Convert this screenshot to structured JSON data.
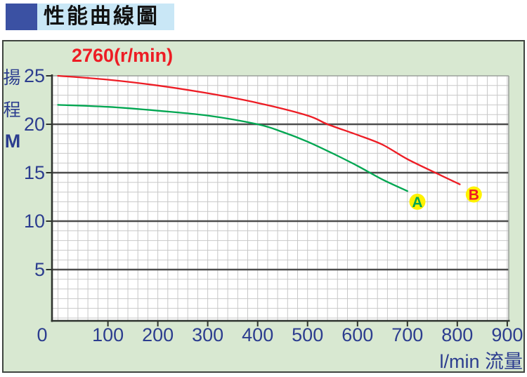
{
  "header": {
    "title": "性能曲線圖"
  },
  "colors": {
    "red": "#ed1c24",
    "green": "#00a651",
    "navy": "#2c3d8f",
    "marker_yellow": "#fff200",
    "panel_bg": "#d8e8d1",
    "title_bar_bg": "#c9e7f6",
    "title_square": "#3b51a3",
    "grid_minor": "#c8c8c8",
    "grid_major": "#4d4d4d",
    "axis_dark": "#2e332e",
    "plot_border_light": "#9aa09a",
    "plot_bg": "#ffffff"
  },
  "chart_data": {
    "type": "line",
    "rpm_label": "2760(r/min)",
    "ylabel_chars": [
      "揚",
      "程"
    ],
    "ylabel_unit": "M",
    "xlabel": "l/min 流量",
    "x_ticks": [
      0,
      100,
      200,
      300,
      400,
      500,
      600,
      700,
      800,
      900
    ],
    "y_ticks": [
      5,
      10,
      15,
      20,
      25
    ],
    "xlim": [
      -12,
      903
    ],
    "ylim": [
      0,
      25
    ],
    "grid": {
      "minor_x_step": 20,
      "minor_y_step": 1,
      "major_y_step": 5,
      "grid_on": true
    },
    "series": [
      {
        "name": "A",
        "color_key": "green",
        "points": [
          [
            0,
            22.0
          ],
          [
            100,
            21.8
          ],
          [
            200,
            21.4
          ],
          [
            300,
            20.9
          ],
          [
            400,
            20.0
          ],
          [
            450,
            19.2
          ],
          [
            500,
            18.2
          ],
          [
            550,
            17.0
          ],
          [
            600,
            15.7
          ],
          [
            650,
            14.3
          ],
          [
            700,
            13.1
          ]
        ]
      },
      {
        "name": "B",
        "color_key": "red",
        "points": [
          [
            0,
            25.0
          ],
          [
            100,
            24.6
          ],
          [
            200,
            24.0
          ],
          [
            300,
            23.2
          ],
          [
            400,
            22.2
          ],
          [
            500,
            20.9
          ],
          [
            540,
            20.0
          ],
          [
            600,
            18.9
          ],
          [
            650,
            17.9
          ],
          [
            700,
            16.4
          ],
          [
            760,
            14.9
          ],
          [
            805,
            13.8
          ]
        ]
      }
    ],
    "markers": [
      {
        "label": "A",
        "x": 720,
        "y": 12.0,
        "fill_key": "marker_yellow",
        "text_key": "green"
      },
      {
        "label": "B",
        "x": 833,
        "y": 12.75,
        "fill_key": "marker_yellow",
        "text_key": "red"
      }
    ]
  }
}
